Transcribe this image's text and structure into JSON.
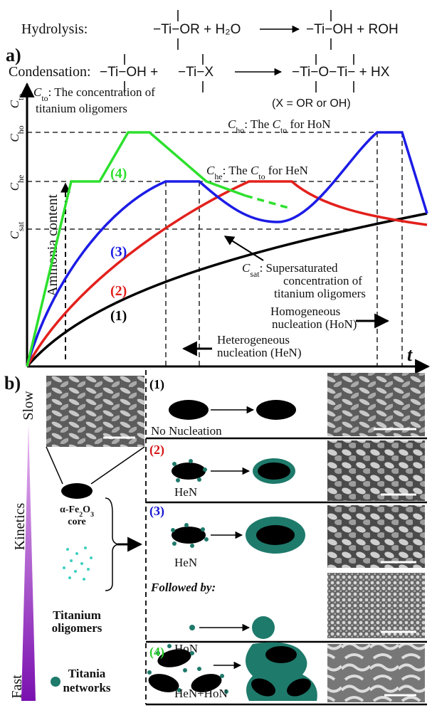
{
  "equations": {
    "hydrolysis_label": "Hydrolysis:",
    "hydrolysis_left": "−Ti−OR + H₂O",
    "hydrolysis_right": "−Ti−OH + ROH",
    "part_a": "a)",
    "condensation_label": "Condensation:",
    "condensation_left_1": "−Ti−OH +",
    "condensation_left_2": "−Ti−X",
    "condensation_right": "−Ti−O−Ti− + HX",
    "x_note": "(X = OR or OH)"
  },
  "graph": {
    "y_symbol": [
      {
        "text": "C",
        "italic": true
      },
      {
        "text": "to",
        "sub": true
      }
    ],
    "y_desc_1": [
      {
        "text": "C",
        "italic": true
      },
      {
        "text": "to",
        "sub": true
      },
      {
        "text": ": The concentration of"
      }
    ],
    "y_desc_2": "titanium oligomers",
    "levels": [
      [
        {
          "text": "C",
          "italic": true
        },
        {
          "text": "ho",
          "sub": true
        }
      ],
      [
        {
          "text": "C",
          "italic": true
        },
        {
          "text": "he",
          "sub": true
        }
      ],
      [
        {
          "text": "C",
          "italic": true
        },
        {
          "text": "sat",
          "sub": true
        }
      ]
    ],
    "ho_note": [
      {
        "text": "C",
        "italic": true
      },
      {
        "text": "ho",
        "sub": true
      },
      {
        "text": ": The "
      },
      {
        "text": "C",
        "italic": true
      },
      {
        "text": "to",
        "sub": true
      },
      {
        "text": " for HoN"
      }
    ],
    "he_note": [
      {
        "text": "C",
        "italic": true
      },
      {
        "text": "he",
        "sub": true
      },
      {
        "text": ": The "
      },
      {
        "text": "C",
        "italic": true
      },
      {
        "text": "to",
        "sub": true
      },
      {
        "text": " for HeN"
      }
    ],
    "sat_note_1": [
      {
        "text": "C",
        "italic": true
      },
      {
        "text": "sat",
        "sub": true
      },
      {
        "text": ": Supersaturated"
      }
    ],
    "sat_note_2": "concentration of",
    "sat_note_3": "titanium oligomers",
    "curves": [
      {
        "label": "(1)",
        "color": "#000000"
      },
      {
        "label": "(2)",
        "color": "#e3201c"
      },
      {
        "label": "(3)",
        "color": "#1c1ce6"
      },
      {
        "label": "(4)",
        "color": "#2de02d"
      }
    ],
    "ammonia": "Ammonia content",
    "hon_1": "Homogeneous",
    "hon_2": "nucleation (HoN)",
    "hen_1": "Heterogeneous",
    "hen_2": "nucleation (HeN)",
    "x_symbol": "t"
  },
  "scheme": {
    "part_b": "b)",
    "slow": "Slow",
    "kinetics": "Kinetics",
    "fast": "Fast",
    "core_1": [
      {
        "text": "α-Fe"
      },
      {
        "text": "2",
        "sub": true
      },
      {
        "text": "O"
      },
      {
        "text": "3",
        "sub": true
      }
    ],
    "core_2": "core",
    "oligomers_1": "Titanium",
    "oligomers_2": "oligomers",
    "networks_1": "Titania",
    "networks_2": "networks",
    "panels": [
      {
        "number": "(1)",
        "caption": "No Nucleation",
        "color": "#000000"
      },
      {
        "number": "(2)",
        "caption": "HeN",
        "color": "#d41414"
      },
      {
        "number": "(3)",
        "caption": "HeN",
        "color": "#1414d4"
      },
      {
        "number": "(4)",
        "caption": "HeN+HoN",
        "color": "#2ccc2c"
      }
    ],
    "followed_by": "Followed by:",
    "hon_caption": "HoN"
  }
}
